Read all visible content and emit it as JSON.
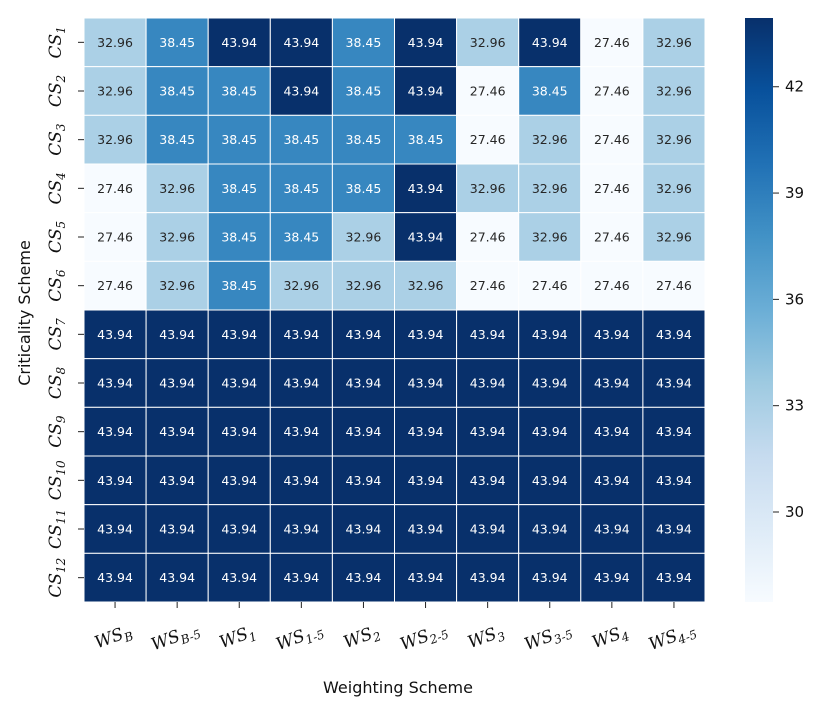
{
  "chart_data": {
    "type": "heatmap",
    "title": "",
    "xlabel": "Weighting Scheme",
    "ylabel": "Criticality Scheme",
    "x_labels": [
      {
        "base": "WS",
        "sub": "B"
      },
      {
        "base": "WS",
        "sub": "B-5"
      },
      {
        "base": "WS",
        "sub": "1"
      },
      {
        "base": "WS",
        "sub": "1-5"
      },
      {
        "base": "WS",
        "sub": "2"
      },
      {
        "base": "WS",
        "sub": "2-5"
      },
      {
        "base": "WS",
        "sub": "3"
      },
      {
        "base": "WS",
        "sub": "3-5"
      },
      {
        "base": "WS",
        "sub": "4"
      },
      {
        "base": "WS",
        "sub": "4-5"
      }
    ],
    "y_labels": [
      {
        "base": "CS",
        "sub": "1"
      },
      {
        "base": "CS",
        "sub": "2"
      },
      {
        "base": "CS",
        "sub": "3"
      },
      {
        "base": "CS",
        "sub": "4"
      },
      {
        "base": "CS",
        "sub": "5"
      },
      {
        "base": "CS",
        "sub": "6"
      },
      {
        "base": "CS",
        "sub": "7"
      },
      {
        "base": "CS",
        "sub": "8"
      },
      {
        "base": "CS",
        "sub": "9"
      },
      {
        "base": "CS",
        "sub": "10"
      },
      {
        "base": "CS",
        "sub": "11"
      },
      {
        "base": "CS",
        "sub": "12"
      }
    ],
    "values": [
      [
        32.96,
        38.45,
        43.94,
        43.94,
        38.45,
        43.94,
        32.96,
        43.94,
        27.46,
        32.96
      ],
      [
        32.96,
        38.45,
        38.45,
        43.94,
        38.45,
        43.94,
        27.46,
        38.45,
        27.46,
        32.96
      ],
      [
        32.96,
        38.45,
        38.45,
        38.45,
        38.45,
        38.45,
        27.46,
        32.96,
        27.46,
        32.96
      ],
      [
        27.46,
        32.96,
        38.45,
        38.45,
        38.45,
        43.94,
        32.96,
        32.96,
        27.46,
        32.96
      ],
      [
        27.46,
        32.96,
        38.45,
        38.45,
        32.96,
        43.94,
        27.46,
        32.96,
        27.46,
        32.96
      ],
      [
        27.46,
        32.96,
        38.45,
        32.96,
        32.96,
        32.96,
        27.46,
        27.46,
        27.46,
        27.46
      ],
      [
        43.94,
        43.94,
        43.94,
        43.94,
        43.94,
        43.94,
        43.94,
        43.94,
        43.94,
        43.94
      ],
      [
        43.94,
        43.94,
        43.94,
        43.94,
        43.94,
        43.94,
        43.94,
        43.94,
        43.94,
        43.94
      ],
      [
        43.94,
        43.94,
        43.94,
        43.94,
        43.94,
        43.94,
        43.94,
        43.94,
        43.94,
        43.94
      ],
      [
        43.94,
        43.94,
        43.94,
        43.94,
        43.94,
        43.94,
        43.94,
        43.94,
        43.94,
        43.94
      ],
      [
        43.94,
        43.94,
        43.94,
        43.94,
        43.94,
        43.94,
        43.94,
        43.94,
        43.94,
        43.94
      ],
      [
        43.94,
        43.94,
        43.94,
        43.94,
        43.94,
        43.94,
        43.94,
        43.94,
        43.94,
        43.94
      ]
    ],
    "value_format": "2 decimals",
    "colormap": "Blues",
    "vmin": 27.46,
    "vmax": 43.94,
    "colorbar_ticks": [
      30,
      33,
      36,
      39,
      42
    ],
    "colorbar_position": "right",
    "cell_borders": "white",
    "grid": false,
    "colors": {
      "cmap_stops": [
        "#f7fbff",
        "#deebf7",
        "#c6dbef",
        "#9ecae1",
        "#6baed6",
        "#4292c6",
        "#2171b5",
        "#08519c",
        "#08306b"
      ],
      "text_dark": "#262626",
      "text_light": "#ffffff"
    }
  }
}
